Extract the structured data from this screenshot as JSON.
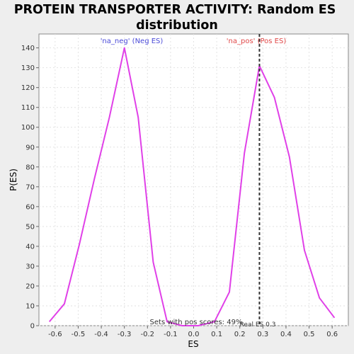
{
  "chart_data": {
    "type": "line",
    "title_lines": [
      "PROTEIN TRANSPORTER ACTIVITY: Random ES",
      "distribution"
    ],
    "xlabel": "ES",
    "ylabel": "P(ES)",
    "xlim": [
      -0.67,
      0.67
    ],
    "ylim": [
      0,
      147
    ],
    "x_ticks": [
      -0.6,
      -0.5,
      -0.4,
      -0.3,
      -0.2,
      -0.1,
      0.0,
      0.1,
      0.2,
      0.3,
      0.4,
      0.5,
      0.6
    ],
    "x_tick_labels": [
      "-0.6",
      "-0.5",
      "-0.4",
      "-0.3",
      "-0.2",
      "-0.1",
      "0.0",
      "0.1",
      "0.2",
      "0.3",
      "0.4",
      "0.5",
      "0.6"
    ],
    "y_ticks": [
      0,
      10,
      20,
      30,
      40,
      50,
      60,
      70,
      80,
      90,
      100,
      110,
      120,
      130,
      140
    ],
    "y_tick_labels": [
      "0",
      "10",
      "20",
      "30",
      "40",
      "50",
      "60",
      "70",
      "80",
      "90",
      "100",
      "110",
      "120",
      "130",
      "140"
    ],
    "grid": true,
    "series": [
      {
        "color": "#e040e8",
        "x": [
          -0.625,
          -0.56,
          -0.495,
          -0.43,
          -0.365,
          -0.3,
          -0.24,
          -0.175,
          -0.115,
          -0.05,
          0.02,
          0.09,
          0.155,
          0.22,
          0.285,
          0.35,
          0.415,
          0.48,
          0.545,
          0.61
        ],
        "y": [
          2,
          11,
          41,
          74,
          105,
          140,
          105,
          32,
          2,
          0,
          0,
          2,
          17,
          87,
          131,
          115,
          85,
          38,
          14,
          4
        ]
      }
    ],
    "vline": {
      "x": 0.285,
      "label": "Real ES 0.3",
      "color": "#333333"
    },
    "annotations": {
      "neg": {
        "text": "'na_neg' (Neg ES)",
        "color": "#4a4ad8"
      },
      "pos": {
        "text": "'na_pos' (Pos ES)",
        "color": "#e04848"
      },
      "footer": {
        "text": "Sets with pos scores: 49%",
        "color": "#333333"
      }
    }
  }
}
